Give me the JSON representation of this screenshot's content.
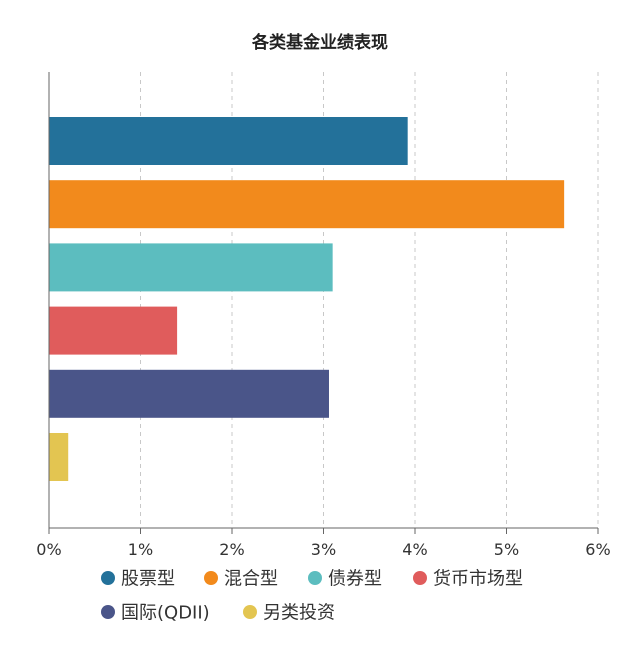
{
  "chart_data": {
    "type": "bar",
    "orientation": "horizontal",
    "title": "各类基金业绩表现",
    "xlabel": "",
    "ylabel": "",
    "xlim": [
      0,
      6
    ],
    "x_ticks": [
      "0%",
      "1%",
      "2%",
      "3%",
      "4%",
      "5%",
      "6%"
    ],
    "grid": "vertical dashed",
    "legend_position": "bottom",
    "categories": [
      "股票型",
      "混合型",
      "债券型",
      "货币市场型",
      "国际(QDII)",
      "另类投资"
    ],
    "values": [
      3.92,
      5.63,
      3.1,
      1.4,
      3.06,
      0.21
    ],
    "colors": [
      "#23719a",
      "#f28a1c",
      "#5cbdbf",
      "#e05c5c",
      "#4a5589",
      "#e3c551"
    ],
    "unit": "%"
  }
}
